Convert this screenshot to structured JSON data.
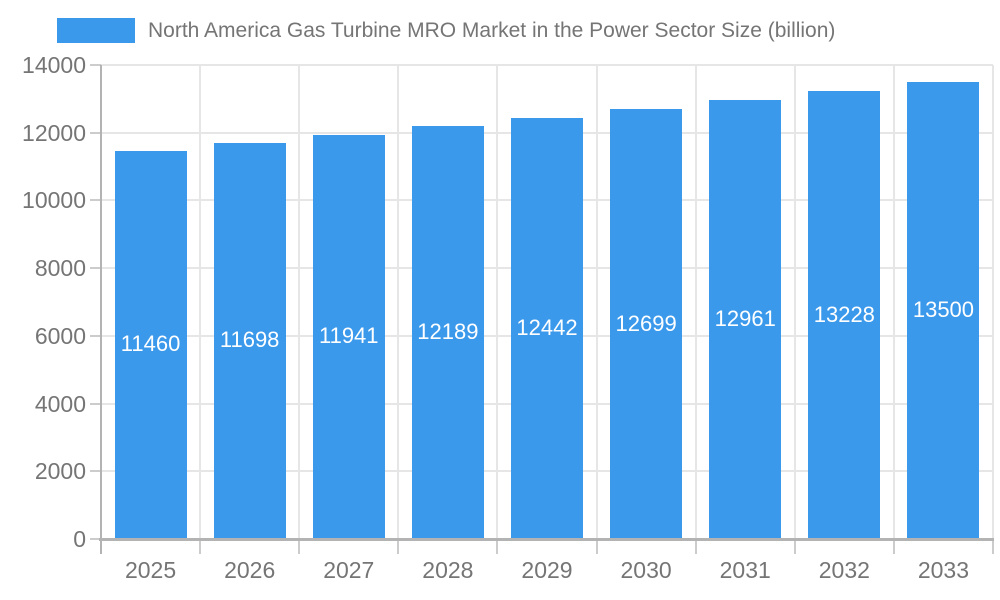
{
  "chart_data": {
    "type": "bar",
    "series_name": "North America Gas Turbine MRO Market in the Power Sector Size (billion)",
    "categories": [
      "2025",
      "2026",
      "2027",
      "2028",
      "2029",
      "2030",
      "2031",
      "2032",
      "2033"
    ],
    "values": [
      11460,
      11698,
      11941,
      12189,
      12442,
      12699,
      12961,
      13228,
      13500
    ],
    "yticks": [
      0,
      2000,
      4000,
      6000,
      8000,
      10000,
      12000,
      14000
    ],
    "ylim": [
      0,
      14000
    ],
    "title": "",
    "xlabel": "",
    "ylabel": "",
    "legend_position": "top-left",
    "grid": true,
    "bar_labels_visible": true,
    "colors": {
      "bar": "#3b99ec",
      "bar_label_text": "#ffffff",
      "axis_text": "#757575",
      "gridline": "#e6e6e6",
      "axis_line": "#b3b3b3",
      "tick": "#cccccc"
    }
  }
}
